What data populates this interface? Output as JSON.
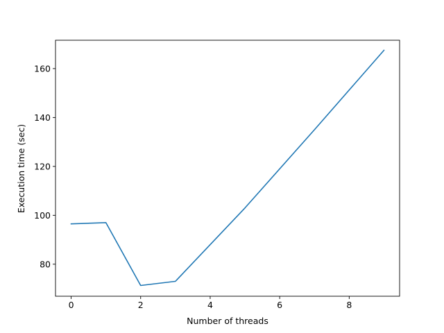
{
  "chart_data": {
    "type": "line",
    "title": "",
    "xlabel": "Number of threads",
    "ylabel": "Execution time (sec)",
    "xlim": [
      -0.45,
      9.45
    ],
    "ylim": [
      66.9,
      171.6
    ],
    "xticks": [
      0,
      2,
      4,
      6,
      8
    ],
    "yticks": [
      80,
      100,
      120,
      140,
      160
    ],
    "grid": false,
    "series": [
      {
        "color": "#1f77b4",
        "x": [
          0,
          1,
          2,
          3,
          5,
          7,
          9
        ],
        "y": [
          96.5,
          97.0,
          71.3,
          73.0,
          103.0,
          135.0,
          167.5
        ]
      }
    ]
  }
}
